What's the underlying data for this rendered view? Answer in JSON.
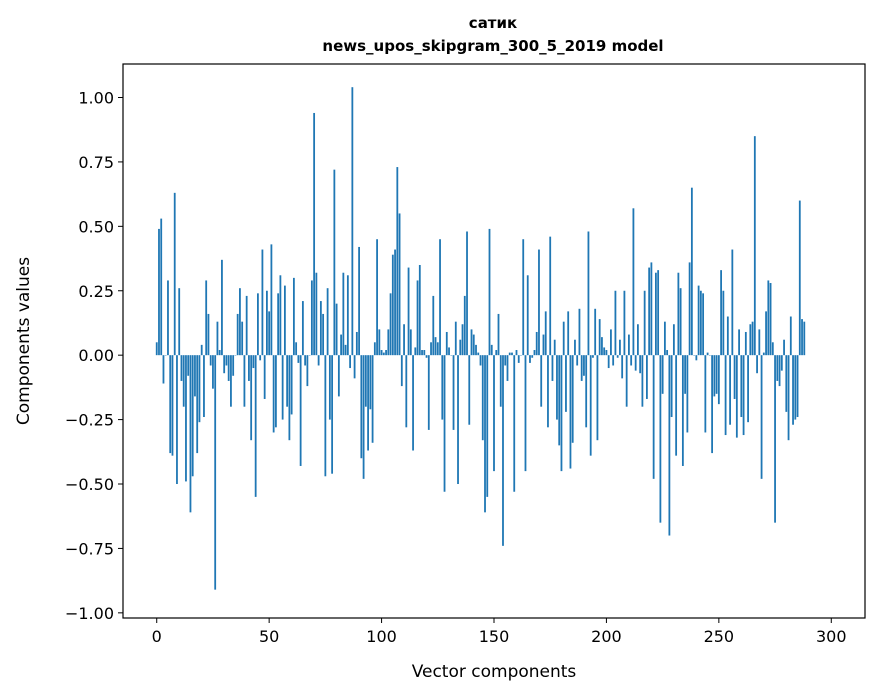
{
  "chart_data": {
    "type": "bar",
    "title_lines": [
      "сатик",
      "news_upos_skipgram_300_5_2019 model"
    ],
    "xlabel": "Vector components",
    "ylabel": "Components values",
    "xlim": [
      -15,
      315
    ],
    "ylim": [
      -1.02,
      1.13
    ],
    "x_ticks": [
      0,
      50,
      100,
      150,
      200,
      250,
      300
    ],
    "y_ticks": [
      -1.0,
      -0.75,
      -0.5,
      -0.25,
      0.0,
      0.25,
      0.5,
      0.75,
      1.0
    ],
    "y_tick_labels": [
      "−1.00",
      "−0.75",
      "−0.50",
      "−0.25",
      "0.00",
      "0.25",
      "0.50",
      "0.75",
      "1.00"
    ],
    "grid": false,
    "bar_color": "#1f77b4",
    "values": [
      0.05,
      0.49,
      0.53,
      -0.11,
      0.0,
      0.29,
      -0.38,
      -0.39,
      0.63,
      -0.5,
      0.26,
      -0.1,
      -0.2,
      -0.49,
      -0.08,
      -0.61,
      -0.47,
      -0.16,
      -0.38,
      -0.26,
      0.04,
      -0.24,
      0.29,
      0.16,
      -0.04,
      -0.13,
      -0.91,
      0.13,
      0.02,
      0.37,
      -0.07,
      -0.04,
      -0.1,
      -0.2,
      -0.08,
      0.0,
      0.16,
      0.26,
      0.13,
      -0.2,
      0.23,
      -0.1,
      -0.33,
      -0.05,
      -0.55,
      0.24,
      -0.02,
      0.41,
      -0.17,
      0.25,
      0.17,
      0.43,
      -0.3,
      -0.28,
      0.24,
      0.31,
      -0.25,
      0.27,
      -0.2,
      -0.33,
      -0.23,
      0.3,
      0.05,
      -0.03,
      -0.43,
      0.21,
      -0.04,
      -0.12,
      0.0,
      0.29,
      0.94,
      0.32,
      -0.04,
      0.21,
      0.16,
      -0.47,
      0.26,
      -0.25,
      -0.46,
      0.72,
      0.2,
      -0.16,
      0.08,
      0.32,
      0.04,
      0.31,
      -0.05,
      1.04,
      -0.09,
      0.09,
      0.42,
      -0.4,
      -0.48,
      -0.2,
      -0.37,
      -0.21,
      -0.34,
      0.05,
      0.45,
      0.1,
      0.02,
      0.01,
      0.02,
      0.1,
      0.24,
      0.39,
      0.41,
      0.73,
      0.55,
      -0.12,
      0.12,
      -0.28,
      0.34,
      0.1,
      -0.37,
      0.03,
      0.29,
      0.35,
      0.02,
      0.02,
      -0.01,
      -0.29,
      0.05,
      0.23,
      0.07,
      0.05,
      0.45,
      -0.25,
      -0.53,
      0.09,
      0.03,
      0.0,
      -0.29,
      0.13,
      -0.5,
      0.06,
      0.12,
      0.23,
      0.48,
      -0.27,
      0.1,
      0.08,
      0.04,
      0.01,
      -0.04,
      -0.33,
      -0.61,
      -0.55,
      0.49,
      0.04,
      -0.45,
      0.02,
      0.16,
      -0.2,
      -0.74,
      -0.04,
      -0.1,
      0.01,
      0.01,
      -0.53,
      0.02,
      -0.03,
      0.0,
      0.45,
      -0.45,
      0.31,
      -0.03,
      -0.01,
      0.02,
      0.09,
      0.41,
      -0.2,
      0.08,
      0.17,
      -0.28,
      0.46,
      -0.1,
      0.06,
      -0.25,
      -0.35,
      -0.45,
      0.13,
      -0.22,
      0.17,
      -0.44,
      -0.34,
      0.06,
      -0.04,
      0.18,
      -0.1,
      -0.08,
      -0.28,
      0.48,
      -0.39,
      -0.01,
      0.18,
      -0.33,
      0.14,
      0.07,
      0.03,
      0.02,
      -0.05,
      0.1,
      -0.04,
      0.25,
      -0.01,
      0.06,
      -0.09,
      0.25,
      -0.2,
      0.08,
      -0.04,
      0.57,
      -0.06,
      0.12,
      -0.07,
      -0.2,
      0.25,
      -0.17,
      0.34,
      0.36,
      -0.48,
      0.32,
      0.33,
      -0.65,
      -0.15,
      0.13,
      0.02,
      -0.7,
      -0.24,
      0.12,
      -0.39,
      0.32,
      0.26,
      -0.43,
      -0.15,
      -0.3,
      0.36,
      0.65,
      0.0,
      -0.02,
      0.27,
      0.25,
      0.24,
      -0.3,
      0.01,
      0.0,
      -0.38,
      -0.16,
      -0.15,
      -0.19,
      0.33,
      0.25,
      -0.31,
      0.15,
      -0.27,
      0.41,
      -0.17,
      -0.32,
      0.1,
      -0.24,
      -0.31,
      0.09,
      -0.26,
      0.12,
      0.13,
      0.85,
      -0.07,
      0.1,
      -0.48,
      0.01,
      0.17,
      0.29,
      0.28,
      0.05,
      -0.65,
      -0.1,
      -0.12,
      -0.06,
      0.06,
      -0.22,
      -0.33,
      0.15,
      -0.27,
      -0.25,
      -0.24,
      0.6,
      0.14,
      0.13
    ]
  }
}
